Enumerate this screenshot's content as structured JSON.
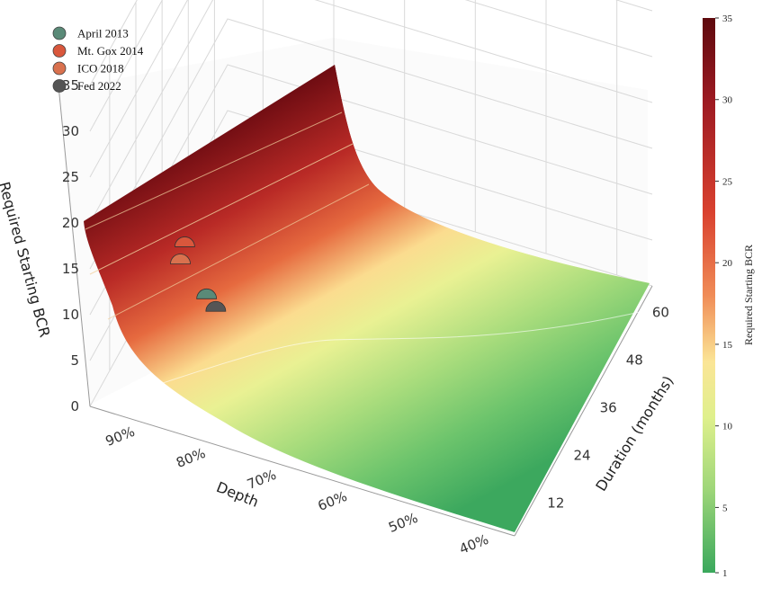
{
  "chart_data": {
    "type": "surface3d",
    "zlabel": "Required Starting BCR",
    "xlabel": "Depth",
    "ylabel": "Duration (months)",
    "z_ticks": [
      "0",
      "5",
      "10",
      "15",
      "20",
      "25",
      "30",
      "35"
    ],
    "depth_ticks": [
      "90%",
      "80%",
      "70%",
      "60%",
      "50%",
      "40%"
    ],
    "duration_ticks": [
      "12",
      "24",
      "36",
      "48",
      "60"
    ],
    "zlim": [
      0,
      35
    ],
    "depth_range": [
      0.35,
      0.95
    ],
    "duration_range": [
      3,
      66
    ],
    "colorbar": {
      "label": "Required Starting BCR",
      "ticks": [
        "35",
        "30",
        "25",
        "20",
        "15",
        "10",
        "5",
        "1"
      ],
      "range": [
        1,
        35
      ]
    },
    "surface_corners": [
      {
        "depth": 0.95,
        "duration": 66,
        "bcr": 20.5
      },
      {
        "depth": 0.95,
        "duration": 3,
        "bcr": 35
      },
      {
        "depth": 0.35,
        "duration": 3,
        "bcr": 1
      },
      {
        "depth": 0.35,
        "duration": 66,
        "bcr": 8
      }
    ],
    "series": [
      {
        "name": "April 2013",
        "color": "#5a8a78",
        "depth": 0.85,
        "duration": 24,
        "bcr": 5
      },
      {
        "name": "Mt. Gox 2014",
        "color": "#d9573c",
        "depth": 0.85,
        "duration": 14,
        "bcr": 15
      },
      {
        "name": "ICO 2018",
        "color": "#d9714e",
        "depth": 0.85,
        "duration": 12,
        "bcr": 14
      },
      {
        "name": "Fed 2022",
        "color": "#555555",
        "depth": 0.8,
        "duration": 12,
        "bcr": 10
      }
    ],
    "grid": true,
    "legend_position": "top-left"
  }
}
